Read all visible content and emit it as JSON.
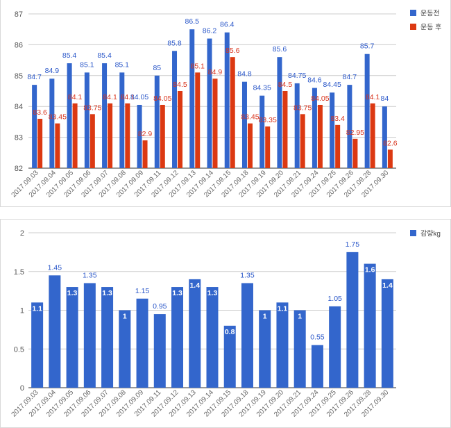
{
  "chart_data": [
    {
      "type": "bar",
      "title": "",
      "xlabel": "",
      "ylabel": "",
      "ylim": [
        82,
        87
      ],
      "yticks": [
        82,
        83,
        84,
        85,
        86,
        87
      ],
      "grid": true,
      "legend_position": "right",
      "categories": [
        "2017.09.03",
        "2017.09.04",
        "2017.09.05",
        "2017.09.06",
        "2017.09.07",
        "2017.09.08",
        "2017.09.09",
        "2017.09.11",
        "2017.09.12",
        "2017.09.13",
        "2017.09.14",
        "2017.09.15",
        "2017.09.18",
        "2017.09.19",
        "2017.09.20",
        "2017.09.21",
        "2017.09.24",
        "2017.09.25",
        "2017.09.26",
        "2017.09.28",
        "2017.09.30"
      ],
      "series": [
        {
          "name": "운동전",
          "color": "#3366cc",
          "label_color": "#2a57c9",
          "values": [
            84.7,
            84.9,
            85.4,
            85.1,
            85.4,
            85.1,
            84.05,
            85,
            85.8,
            86.5,
            86.2,
            86.4,
            84.8,
            84.35,
            85.6,
            84.75,
            84.6,
            84.45,
            84.7,
            85.7,
            84
          ]
        },
        {
          "name": "운동 후",
          "color": "#dc3912",
          "label_color": "#d8341d",
          "values": [
            83.6,
            83.45,
            84.1,
            83.75,
            84.1,
            84.1,
            82.9,
            84.05,
            84.5,
            85.1,
            84.9,
            85.6,
            83.45,
            83.35,
            84.5,
            83.75,
            84.05,
            83.4,
            82.95,
            84.1,
            82.6
          ]
        }
      ]
    },
    {
      "type": "bar",
      "title": "",
      "xlabel": "",
      "ylabel": "",
      "ylim": [
        0,
        2
      ],
      "yticks": [
        0,
        0.5,
        1,
        1.5,
        2
      ],
      "grid": true,
      "legend_position": "right",
      "categories": [
        "2017.09.03",
        "2017.09.04",
        "2017.09.05",
        "2017.09.06",
        "2017.09.07",
        "2017.09.08",
        "2017.09.09",
        "2017.09.11",
        "2017.09.12",
        "2017.09.13",
        "2017.09.14",
        "2017.09.15",
        "2017.09.18",
        "2017.09.19",
        "2017.09.20",
        "2017.09.21",
        "2017.09.24",
        "2017.09.25",
        "2017.09.26",
        "2017.09.28",
        "2017.09.30"
      ],
      "series": [
        {
          "name": "감량kg",
          "color": "#3366cc",
          "values": [
            1.1,
            1.45,
            1.3,
            1.35,
            1.3,
            1,
            1.15,
            0.95,
            1.3,
            1.4,
            1.3,
            0.8,
            1.35,
            1,
            1.1,
            1,
            0.55,
            1.05,
            1.75,
            1.6,
            1.4
          ]
        }
      ]
    }
  ]
}
